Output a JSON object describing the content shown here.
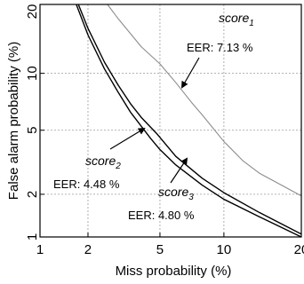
{
  "chart_data": {
    "type": "line",
    "title": "",
    "xlabel": "Miss probability (%)",
    "ylabel": "False alarm probability (%)",
    "xscale": "probit",
    "yscale": "probit",
    "xlim": [
      1,
      20
    ],
    "ylim": [
      1,
      20
    ],
    "xticks": [
      1,
      2,
      5,
      10,
      20
    ],
    "yticks": [
      1,
      2,
      5,
      10,
      20
    ],
    "xtick_labels": [
      "1",
      "2",
      "5",
      "10",
      "20"
    ],
    "ytick_labels": [
      "1",
      "2",
      "5",
      "10",
      "20"
    ],
    "grid": true,
    "series": [
      {
        "name": "score₁",
        "color": "#8c8c8c",
        "x": [
          2.6,
          3.0,
          4.0,
          5.0,
          6.0,
          7.13,
          8.0,
          10.0,
          12.0,
          14.0,
          17.0,
          20.0
        ],
        "y": [
          20.0,
          17.5,
          13.3,
          11.1,
          9.0,
          7.13,
          6.1,
          4.3,
          3.3,
          2.75,
          2.3,
          1.95
        ]
      },
      {
        "name": "score₂",
        "color": "#000000",
        "x": [
          1.7,
          2.0,
          2.5,
          3.0,
          3.5,
          4.48,
          5.0,
          6.0,
          8.0,
          10.0,
          14.0,
          20.0
        ],
        "y": [
          20.0,
          15.0,
          10.5,
          8.0,
          6.3,
          4.48,
          3.85,
          3.1,
          2.3,
          1.85,
          1.4,
          1.0
        ]
      },
      {
        "name": "score₃",
        "color": "#000000",
        "x": [
          1.75,
          2.0,
          2.5,
          3.0,
          3.5,
          4.0,
          4.8,
          6.0,
          8.0,
          10.0,
          14.0,
          20.0
        ],
        "y": [
          20.0,
          16.0,
          11.3,
          8.7,
          7.0,
          5.9,
          4.8,
          3.5,
          2.55,
          2.05,
          1.5,
          1.05
        ]
      }
    ],
    "annotations": [
      {
        "label": "score",
        "subscript": "1",
        "eer": "EER: 7.13 %"
      },
      {
        "label": "score",
        "subscript": "2",
        "eer": "EER: 4.48 %"
      },
      {
        "label": "score",
        "subscript": "3",
        "eer": "EER: 4.80 %"
      }
    ]
  }
}
